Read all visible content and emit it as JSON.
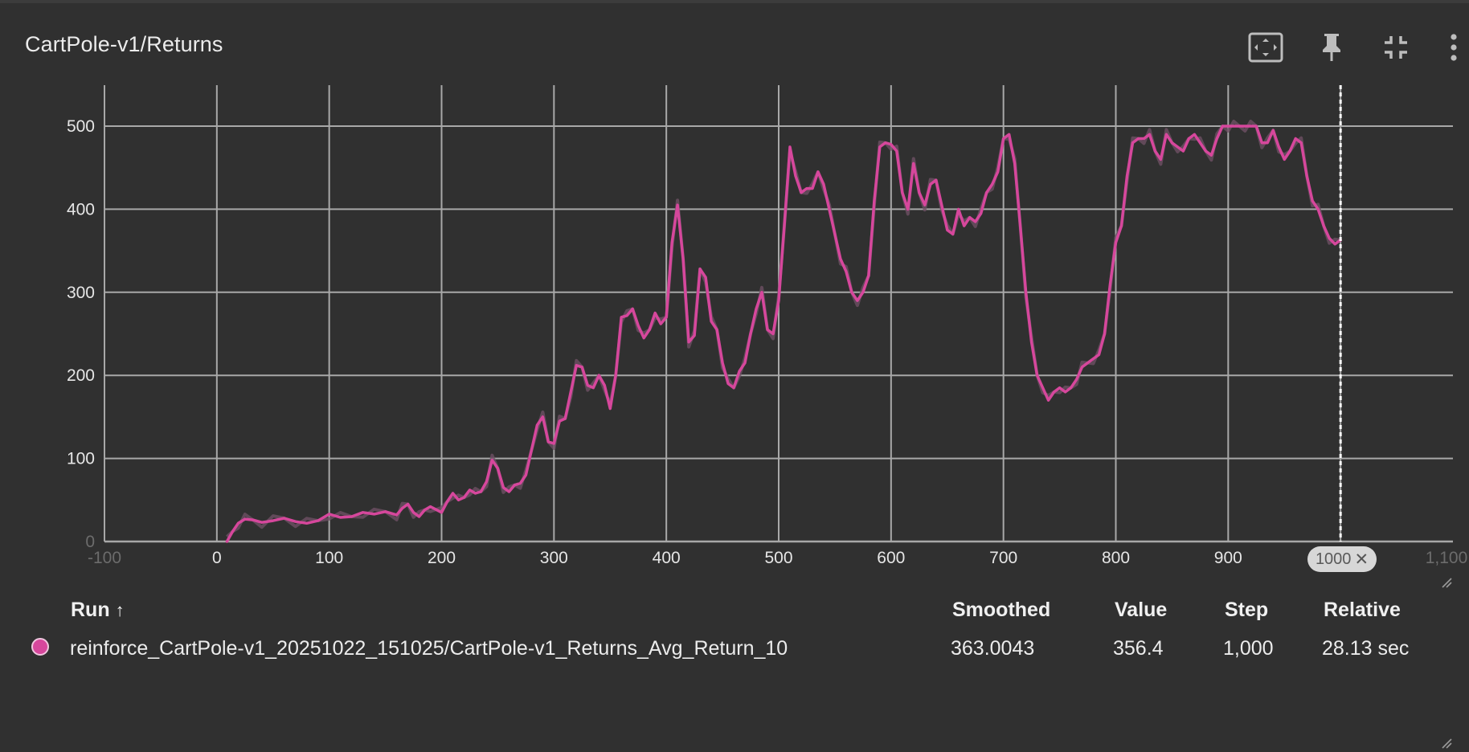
{
  "card": {
    "title": "CartPole-v1/Returns"
  },
  "toolbar": {
    "icons": [
      "fit-to-screen-icon",
      "pin-icon",
      "collapse-icon",
      "more-vert-icon"
    ]
  },
  "step_badge": {
    "label": "1000",
    "close_glyph": "✕"
  },
  "colors": {
    "background": "#303030",
    "grid": "#a8a8a8",
    "series": "#d6479c",
    "series_raw": "#6e5064",
    "cursor": "#ffffff"
  },
  "chart_data": {
    "type": "line",
    "xlim": [
      -100,
      1100
    ],
    "ylim": [
      0,
      500
    ],
    "x_ticks": [
      "0",
      "100",
      "200",
      "300",
      "400",
      "500",
      "600",
      "700",
      "800",
      "900"
    ],
    "x_ticks_faded": [
      "-100",
      "1,100"
    ],
    "y_ticks": [
      "0",
      "100",
      "200",
      "300",
      "400",
      "500"
    ],
    "grid": true,
    "cursor_step": 1000,
    "series": [
      {
        "x": [
          9,
          14,
          19,
          25,
          32,
          40,
          50,
          60,
          70,
          80,
          90,
          100,
          110,
          120,
          130,
          140,
          150,
          160,
          165,
          170,
          175,
          180,
          185,
          190,
          200,
          205,
          210,
          215,
          220,
          225,
          230,
          235,
          240,
          245,
          250,
          255,
          260,
          265,
          270,
          275,
          280,
          285,
          290,
          295,
          300,
          305,
          310,
          315,
          320,
          325,
          330,
          335,
          340,
          345,
          350,
          355,
          360,
          365,
          370,
          375,
          380,
          385,
          390,
          395,
          400,
          405,
          410,
          415,
          420,
          425,
          430,
          435,
          440,
          445,
          450,
          455,
          460,
          465,
          470,
          475,
          480,
          485,
          490,
          495,
          500,
          505,
          510,
          515,
          520,
          525,
          530,
          535,
          540,
          545,
          550,
          555,
          560,
          565,
          570,
          575,
          580,
          585,
          590,
          595,
          600,
          605,
          610,
          615,
          620,
          625,
          630,
          635,
          640,
          645,
          650,
          655,
          660,
          665,
          670,
          675,
          680,
          685,
          690,
          695,
          700,
          705,
          710,
          715,
          720,
          725,
          730,
          735,
          740,
          745,
          750,
          755,
          760,
          765,
          770,
          775,
          780,
          785,
          790,
          795,
          800,
          805,
          810,
          815,
          820,
          825,
          830,
          835,
          840,
          845,
          850,
          855,
          860,
          865,
          870,
          875,
          880,
          885,
          890,
          895,
          900,
          905,
          910,
          915,
          920,
          925,
          930,
          935,
          940,
          945,
          950,
          955,
          960,
          965,
          970,
          975,
          980,
          985,
          990,
          995,
          1000
        ],
        "values": [
          0,
          12,
          22,
          27,
          26,
          23,
          25,
          28,
          24,
          22,
          25,
          33,
          29,
          30,
          35,
          33,
          36,
          32,
          40,
          45,
          35,
          30,
          38,
          42,
          35,
          48,
          58,
          50,
          53,
          62,
          58,
          60,
          72,
          98,
          88,
          65,
          60,
          68,
          70,
          80,
          110,
          140,
          150,
          120,
          118,
          145,
          148,
          180,
          212,
          210,
          188,
          185,
          200,
          188,
          160,
          200,
          270,
          272,
          280,
          260,
          245,
          255,
          275,
          262,
          270,
          360,
          405,
          340,
          240,
          248,
          328,
          318,
          265,
          255,
          215,
          190,
          185,
          205,
          215,
          250,
          280,
          300,
          255,
          250,
          290,
          380,
          475,
          440,
          420,
          425,
          425,
          445,
          430,
          400,
          370,
          340,
          325,
          300,
          290,
          300,
          320,
          410,
          475,
          480,
          478,
          470,
          420,
          400,
          455,
          420,
          405,
          430,
          435,
          405,
          375,
          370,
          400,
          380,
          390,
          385,
          395,
          420,
          430,
          445,
          485,
          490,
          455,
          380,
          300,
          240,
          200,
          185,
          170,
          180,
          185,
          180,
          185,
          195,
          210,
          215,
          220,
          225,
          250,
          310,
          360,
          380,
          440,
          480,
          485,
          485,
          490,
          470,
          460,
          490,
          480,
          475,
          470,
          485,
          490,
          480,
          470,
          465,
          485,
          500,
          500,
          500,
          500,
          500,
          500,
          500,
          480,
          480,
          495,
          475,
          460,
          470,
          485,
          480,
          440,
          410,
          400,
          380,
          365,
          358,
          363
        ]
      }
    ]
  },
  "table": {
    "headers": {
      "run": "Run",
      "sort_glyph": "↑",
      "smoothed": "Smoothed",
      "value": "Value",
      "step": "Step",
      "relative": "Relative"
    },
    "rows": [
      {
        "run": "reinforce_CartPole-v1_20251022_151025/CartPole-v1_Returns_Avg_Return_10",
        "smoothed": "363.0043",
        "value": "356.4",
        "step": "1,000",
        "relative": "28.13 sec"
      }
    ]
  }
}
